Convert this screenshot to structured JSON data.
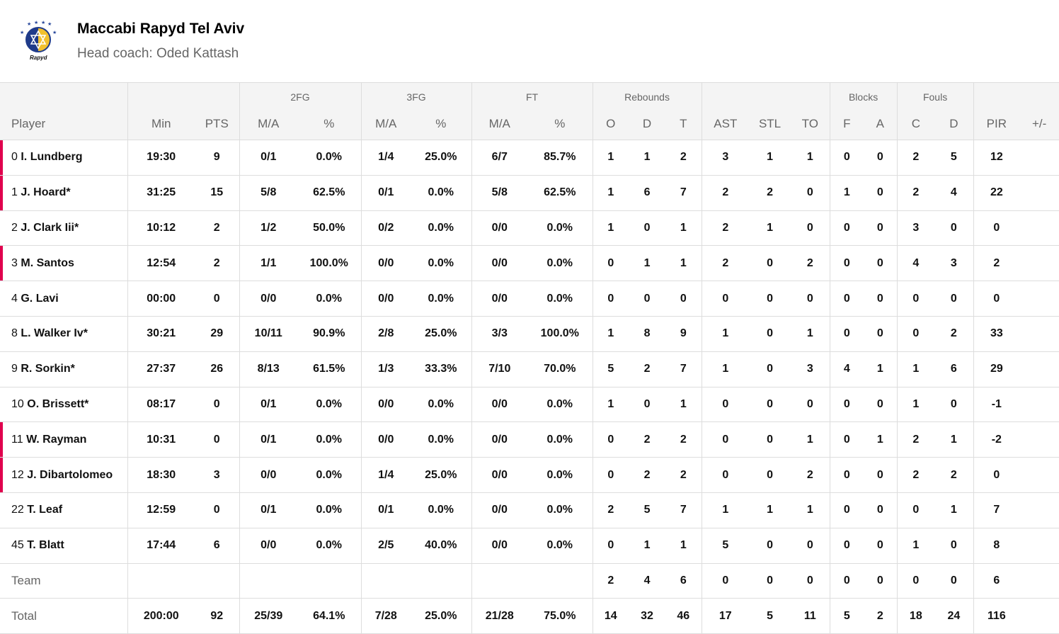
{
  "team": {
    "name": "Maccabi Rapyd Tel Aviv",
    "coach": "Head coach: Oded Kattash",
    "logo_text": "Rapyd"
  },
  "colors": {
    "accent": "#e0004d",
    "header_bg": "#f4f4f4"
  },
  "groups": [
    "",
    "",
    "2FG",
    "3FG",
    "FT",
    "Rebounds",
    "",
    "Blocks",
    "Fouls",
    ""
  ],
  "columns": [
    "Player",
    "Min",
    "PTS",
    "M/A",
    "%",
    "M/A",
    "%",
    "M/A",
    "%",
    "O",
    "D",
    "T",
    "AST",
    "STL",
    "TO",
    "F",
    "A",
    "C",
    "D",
    "PIR",
    "+/-"
  ],
  "players": [
    {
      "num": "0",
      "name": "I. Lundberg",
      "on_court": true,
      "stats": [
        "19:30",
        "9",
        "0/1",
        "0.0%",
        "1/4",
        "25.0%",
        "6/7",
        "85.7%",
        "1",
        "1",
        "2",
        "3",
        "1",
        "1",
        "0",
        "0",
        "2",
        "5",
        "12",
        ""
      ]
    },
    {
      "num": "1",
      "name": "J. Hoard*",
      "on_court": true,
      "stats": [
        "31:25",
        "15",
        "5/8",
        "62.5%",
        "0/1",
        "0.0%",
        "5/8",
        "62.5%",
        "1",
        "6",
        "7",
        "2",
        "2",
        "0",
        "1",
        "0",
        "2",
        "4",
        "22",
        ""
      ]
    },
    {
      "num": "2",
      "name": "J. Clark Iii*",
      "on_court": false,
      "stats": [
        "10:12",
        "2",
        "1/2",
        "50.0%",
        "0/2",
        "0.0%",
        "0/0",
        "0.0%",
        "1",
        "0",
        "1",
        "2",
        "1",
        "0",
        "0",
        "0",
        "3",
        "0",
        "0",
        ""
      ]
    },
    {
      "num": "3",
      "name": "M. Santos",
      "on_court": true,
      "stats": [
        "12:54",
        "2",
        "1/1",
        "100.0%",
        "0/0",
        "0.0%",
        "0/0",
        "0.0%",
        "0",
        "1",
        "1",
        "2",
        "0",
        "2",
        "0",
        "0",
        "4",
        "3",
        "2",
        ""
      ]
    },
    {
      "num": "4",
      "name": "G. Lavi",
      "on_court": false,
      "stats": [
        "00:00",
        "0",
        "0/0",
        "0.0%",
        "0/0",
        "0.0%",
        "0/0",
        "0.0%",
        "0",
        "0",
        "0",
        "0",
        "0",
        "0",
        "0",
        "0",
        "0",
        "0",
        "0",
        ""
      ]
    },
    {
      "num": "8",
      "name": "L. Walker Iv*",
      "on_court": false,
      "stats": [
        "30:21",
        "29",
        "10/11",
        "90.9%",
        "2/8",
        "25.0%",
        "3/3",
        "100.0%",
        "1",
        "8",
        "9",
        "1",
        "0",
        "1",
        "0",
        "0",
        "0",
        "2",
        "33",
        ""
      ]
    },
    {
      "num": "9",
      "name": "R. Sorkin*",
      "on_court": false,
      "stats": [
        "27:37",
        "26",
        "8/13",
        "61.5%",
        "1/3",
        "33.3%",
        "7/10",
        "70.0%",
        "5",
        "2",
        "7",
        "1",
        "0",
        "3",
        "4",
        "1",
        "1",
        "6",
        "29",
        ""
      ]
    },
    {
      "num": "10",
      "name": "O. Brissett*",
      "on_court": false,
      "stats": [
        "08:17",
        "0",
        "0/1",
        "0.0%",
        "0/0",
        "0.0%",
        "0/0",
        "0.0%",
        "1",
        "0",
        "1",
        "0",
        "0",
        "0",
        "0",
        "0",
        "1",
        "0",
        "-1",
        ""
      ]
    },
    {
      "num": "11",
      "name": "W. Rayman",
      "on_court": true,
      "stats": [
        "10:31",
        "0",
        "0/1",
        "0.0%",
        "0/0",
        "0.0%",
        "0/0",
        "0.0%",
        "0",
        "2",
        "2",
        "0",
        "0",
        "1",
        "0",
        "1",
        "2",
        "1",
        "-2",
        ""
      ]
    },
    {
      "num": "12",
      "name": "J. Dibartolomeo",
      "on_court": true,
      "stats": [
        "18:30",
        "3",
        "0/0",
        "0.0%",
        "1/4",
        "25.0%",
        "0/0",
        "0.0%",
        "0",
        "2",
        "2",
        "0",
        "0",
        "2",
        "0",
        "0",
        "2",
        "2",
        "0",
        ""
      ]
    },
    {
      "num": "22",
      "name": "T. Leaf",
      "on_court": false,
      "stats": [
        "12:59",
        "0",
        "0/1",
        "0.0%",
        "0/1",
        "0.0%",
        "0/0",
        "0.0%",
        "2",
        "5",
        "7",
        "1",
        "1",
        "1",
        "0",
        "0",
        "0",
        "1",
        "7",
        ""
      ]
    },
    {
      "num": "45",
      "name": "T. Blatt",
      "on_court": false,
      "stats": [
        "17:44",
        "6",
        "0/0",
        "0.0%",
        "2/5",
        "40.0%",
        "0/0",
        "0.0%",
        "0",
        "1",
        "1",
        "5",
        "0",
        "0",
        "0",
        "0",
        "1",
        "0",
        "8",
        ""
      ]
    }
  ],
  "team_row": {
    "label": "Team",
    "stats": [
      "",
      "",
      "",
      "",
      "",
      "",
      "",
      "",
      "2",
      "4",
      "6",
      "0",
      "0",
      "0",
      "0",
      "0",
      "0",
      "0",
      "6",
      ""
    ]
  },
  "total_row": {
    "label": "Total",
    "stats": [
      "200:00",
      "92",
      "25/39",
      "64.1%",
      "7/28",
      "25.0%",
      "21/28",
      "75.0%",
      "14",
      "32",
      "46",
      "17",
      "5",
      "11",
      "5",
      "2",
      "18",
      "24",
      "116",
      ""
    ]
  }
}
